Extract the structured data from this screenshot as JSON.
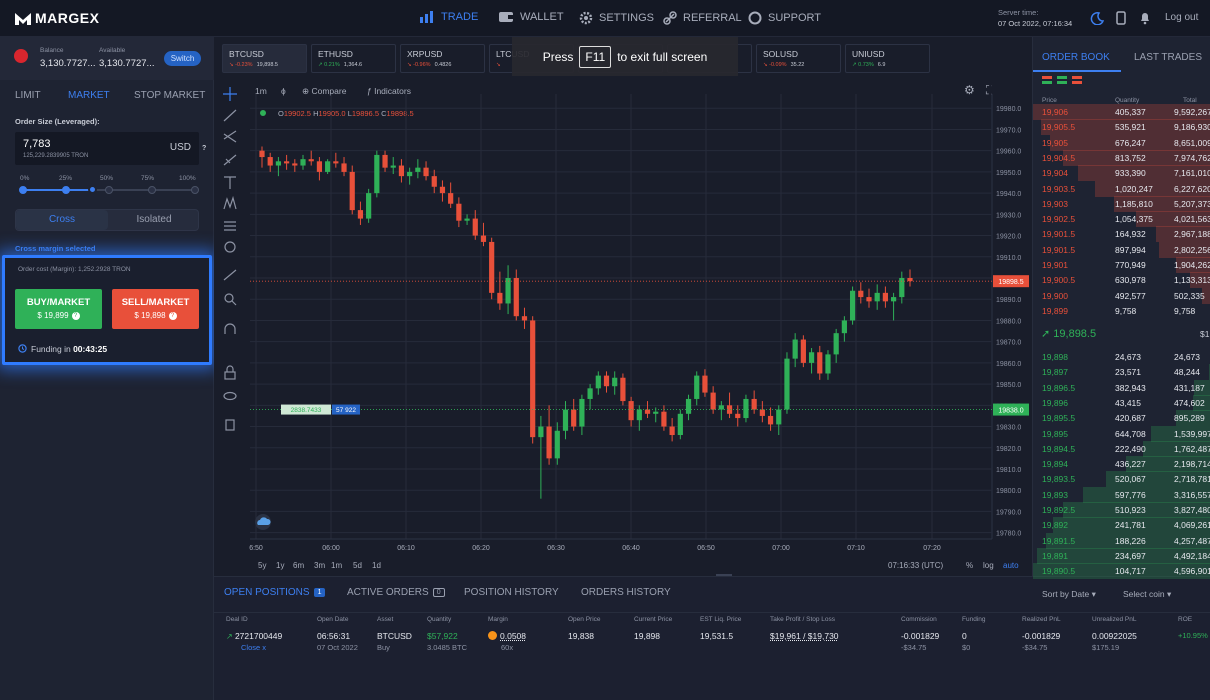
{
  "header": {
    "logo": "MARGEX",
    "nav": [
      "TRADE",
      "WALLET",
      "SETTINGS",
      "REFERRAL",
      "SUPPORT"
    ],
    "server_label": "Server time:",
    "server_time": "07 Oct 2022, 07:16:34",
    "logout": "Log out"
  },
  "balance": {
    "balance_label": "Balance",
    "balance_value": "3,130.7727...",
    "available_label": "Available",
    "available_value": "3,130.7727...",
    "switch": "Switch"
  },
  "order": {
    "tabs": [
      "LIMIT",
      "MARKET",
      "STOP MARKET"
    ],
    "size_label": "Order Size (Leveraged):",
    "size_value": "7,783",
    "size_sub": "125,229.2839905 TRON",
    "currency": "USD",
    "help": "?",
    "percents": [
      "0%",
      "25%",
      "50%",
      "75%",
      "100%"
    ],
    "slider_fraction": 0.4,
    "margin_tabs": [
      "Cross",
      "Isolated"
    ],
    "cross_selected": "Cross margin selected",
    "order_cost": "Order cost (Margin): 1,252.2928 TRON",
    "buy_label": "BUY/MARKET",
    "buy_price": "$ 19,899",
    "sell_label": "SELL/MARKET",
    "sell_price": "$ 19,898",
    "funding_label": "Funding in",
    "funding_time": "00:43:25"
  },
  "tickers": [
    {
      "name": "BTCUSD",
      "change": "-0.23%",
      "price": "19,898.5",
      "dir": "down"
    },
    {
      "name": "ETHUSD",
      "change": "0.21%",
      "price": "1,364.6",
      "dir": "up"
    },
    {
      "name": "XRPUSD",
      "change": "-0.96%",
      "price": "0.4826",
      "dir": "down"
    },
    {
      "name": "LTCUSD",
      "change": "",
      "price": "",
      "dir": "down"
    },
    {
      "name": "",
      "change": "",
      "price": "",
      "dir": "up"
    },
    {
      "name": "",
      "change": "",
      "price": "",
      "dir": "up"
    },
    {
      "name": "SOLUSD",
      "change": "-0.09%",
      "price": "35.22",
      "dir": "down"
    },
    {
      "name": "UNIUSD",
      "change": "0.73%",
      "price": "6.9",
      "dir": "up"
    }
  ],
  "fullscreen": {
    "press": "Press",
    "key": "F11",
    "text": "to exit full screen"
  },
  "chart_toolbar": {
    "interval": "1m",
    "compare": "Compare",
    "indicators": "Indicators"
  },
  "ohlc": {
    "o": "19902.5",
    "h": "19905.0",
    "l": "19896.5",
    "c": "19898.5"
  },
  "chart_data": {
    "type": "candlestick",
    "symbol": "BTCUSD",
    "interval": "1m",
    "y_ticks": [
      19980,
      19970,
      19960,
      19950,
      19940,
      19930,
      19920,
      19910,
      19900,
      19890,
      19880,
      19870,
      19860,
      19850,
      19840,
      19830,
      19820,
      19810,
      19800,
      19790,
      19780
    ],
    "y_tick_labels": [
      "19980.0",
      "19970.0",
      "19960.0",
      "19950.0",
      "19940.0",
      "19930.0",
      "19920.0",
      "19910.0",
      "19900.0",
      "19890.0",
      "19880.0",
      "19870.0",
      "19860.0",
      "19850.0",
      "19840.0",
      "19830.0",
      "19820.0",
      "19810.0",
      "19800.0",
      "19790.0",
      "19780.0"
    ],
    "x_tick_labels": [
      "6:50",
      "06:00",
      "06:10",
      "06:20",
      "06:30",
      "06:40",
      "06:50",
      "07:00",
      "07:10",
      "07:20"
    ],
    "ylim": [
      19777,
      19982
    ],
    "current_price": "19898.5",
    "position_price": "19838.0",
    "position_pnl": "2838.7433",
    "position_qty": "57 922",
    "candles": [
      [
        19960,
        19962,
        19952,
        19957
      ],
      [
        19957,
        19959,
        19950,
        19953
      ],
      [
        19953,
        19957,
        19948,
        19955
      ],
      [
        19955,
        19958,
        19951,
        19954
      ],
      [
        19954,
        19956,
        19950,
        19953
      ],
      [
        19953,
        19958,
        19951,
        19956
      ],
      [
        19956,
        19960,
        19953,
        19955
      ],
      [
        19955,
        19957,
        19946,
        19950
      ],
      [
        19950,
        19956,
        19949,
        19955
      ],
      [
        19955,
        19959,
        19952,
        19954
      ],
      [
        19954,
        19957,
        19948,
        19950
      ],
      [
        19950,
        19953,
        19930,
        19932
      ],
      [
        19932,
        19936,
        19925,
        19928
      ],
      [
        19928,
        19942,
        19926,
        19940
      ],
      [
        19940,
        19960,
        19938,
        19958
      ],
      [
        19958,
        19960,
        19950,
        19952
      ],
      [
        19952,
        19957,
        19949,
        19953
      ],
      [
        19953,
        19956,
        19945,
        19948
      ],
      [
        19948,
        19952,
        19944,
        19950
      ],
      [
        19950,
        19956,
        19947,
        19952
      ],
      [
        19952,
        19955,
        19946,
        19948
      ],
      [
        19948,
        19951,
        19940,
        19943
      ],
      [
        19943,
        19946,
        19936,
        19940
      ],
      [
        19940,
        19945,
        19933,
        19935
      ],
      [
        19935,
        19938,
        19924,
        19927
      ],
      [
        19927,
        19930,
        19925,
        19928
      ],
      [
        19928,
        19932,
        19918,
        19920
      ],
      [
        19920,
        19926,
        19915,
        19917
      ],
      [
        19917,
        19919,
        19890,
        19893
      ],
      [
        19893,
        19903,
        19885,
        19888
      ],
      [
        19888,
        19906,
        19883,
        19900
      ],
      [
        19900,
        19904,
        19880,
        19882
      ],
      [
        19882,
        19886,
        19876,
        19880
      ],
      [
        19880,
        19882,
        19822,
        19825
      ],
      [
        19825,
        19835,
        19796,
        19830
      ],
      [
        19830,
        19840,
        19812,
        19815
      ],
      [
        19815,
        19832,
        19812,
        19828
      ],
      [
        19828,
        19842,
        19824,
        19838
      ],
      [
        19838,
        19843,
        19828,
        19830
      ],
      [
        19830,
        19845,
        19826,
        19843
      ],
      [
        19843,
        19850,
        19838,
        19848
      ],
      [
        19848,
        19856,
        19845,
        19854
      ],
      [
        19854,
        19856,
        19846,
        19849
      ],
      [
        19849,
        19856,
        19845,
        19853
      ],
      [
        19853,
        19855,
        19840,
        19842
      ],
      [
        19842,
        19844,
        19830,
        19833
      ],
      [
        19833,
        19840,
        19828,
        19838
      ],
      [
        19838,
        19842,
        19834,
        19836
      ],
      [
        19836,
        19839,
        19832,
        19837
      ],
      [
        19837,
        19840,
        19828,
        19830
      ],
      [
        19830,
        19834,
        19823,
        19826
      ],
      [
        19826,
        19838,
        19824,
        19836
      ],
      [
        19836,
        19845,
        19833,
        19843
      ],
      [
        19843,
        19856,
        19840,
        19854
      ],
      [
        19854,
        19857,
        19844,
        19846
      ],
      [
        19846,
        19849,
        19836,
        19838
      ],
      [
        19838,
        19842,
        19833,
        19840
      ],
      [
        19840,
        19846,
        19834,
        19836
      ],
      [
        19836,
        19840,
        19830,
        19834
      ],
      [
        19834,
        19845,
        19832,
        19843
      ],
      [
        19843,
        19847,
        19836,
        19838
      ],
      [
        19838,
        19842,
        19832,
        19835
      ],
      [
        19835,
        19839,
        19828,
        19831
      ],
      [
        19831,
        19840,
        19826,
        19838
      ],
      [
        19838,
        19865,
        19836,
        19862
      ],
      [
        19862,
        19874,
        19858,
        19871
      ],
      [
        19871,
        19873,
        19858,
        19860
      ],
      [
        19860,
        19867,
        19855,
        19865
      ],
      [
        19865,
        19868,
        19852,
        19855
      ],
      [
        19855,
        19866,
        19852,
        19864
      ],
      [
        19864,
        19876,
        19860,
        19874
      ],
      [
        19874,
        19882,
        19870,
        19880
      ],
      [
        19880,
        19896,
        19878,
        19894
      ],
      [
        19894,
        19898,
        19888,
        19891
      ],
      [
        19891,
        19895,
        19886,
        19889
      ],
      [
        19889,
        19897,
        19885,
        19893
      ],
      [
        19893,
        19896,
        19886,
        19889
      ],
      [
        19889,
        19893,
        19880,
        19891
      ],
      [
        19891,
        19903,
        19888,
        19900
      ],
      [
        19900,
        19904,
        19896,
        19898.5
      ]
    ]
  },
  "chart_footer": {
    "ranges": [
      "5y",
      "1y",
      "6m",
      "3m",
      "1m",
      "5d",
      "1d"
    ],
    "time": "07:16:33 (UTC)",
    "pct": "%",
    "log": "log",
    "auto": "auto"
  },
  "bottom": {
    "tabs": [
      "OPEN POSITIONS",
      "ACTIVE ORDERS",
      "POSITION HISTORY",
      "ORDERS HISTORY"
    ],
    "open_count": "1",
    "active_count": "0",
    "sort": "Sort by Date",
    "select_coin": "Select coin",
    "columns": [
      "Deal ID",
      "Open Date",
      "Asset",
      "Quantity",
      "Margin",
      "Open Price",
      "Current Price",
      "EST Liq. Price",
      "Take Profit / Stop Loss",
      "Commission",
      "Funding",
      "Realized PnL",
      "Unrealized PnL",
      "ROE"
    ],
    "row": {
      "deal_id": "2721700449",
      "close": "Close",
      "open_time": "06:56:31",
      "open_date": "07 Oct 2022",
      "asset": "BTCUSD",
      "side": "Buy",
      "qty": "$57,922",
      "qty_btc": "3.0485 BTC",
      "margin": "0.0508",
      "leverage": "60x",
      "open_price": "19,838",
      "current_price": "19,898",
      "liq_price": "19,531.5",
      "tp_sl": "$19,961 / $19,730",
      "commission": "-0.001829",
      "commission_usd": "-$34.75",
      "funding": "0",
      "funding_usd": "$0",
      "realized": "-0.001829",
      "realized_usd": "-$34.75",
      "unrealized": "0.00922025",
      "unrealized_usd": "$175.19",
      "roe": "+10.95%"
    }
  },
  "orderbook": {
    "tabs": [
      "ORDER BOOK",
      "LAST TRADES"
    ],
    "headers": [
      "Price",
      "Quantity",
      "Total"
    ],
    "asks": [
      [
        "19,906",
        "405,337",
        "9,592,267"
      ],
      [
        "19,905.5",
        "535,921",
        "9,186,930"
      ],
      [
        "19,905",
        "676,247",
        "8,651,009"
      ],
      [
        "19,904.5",
        "813,752",
        "7,974,762"
      ],
      [
        "19,904",
        "933,390",
        "7,161,010"
      ],
      [
        "19,903.5",
        "1,020,247",
        "6,227,620"
      ],
      [
        "19,903",
        "1,185,810",
        "5,207,373"
      ],
      [
        "19,902.5",
        "1,054,375",
        "4,021,563"
      ],
      [
        "19,901.5",
        "164,932",
        "2,967,188"
      ],
      [
        "19,901.5",
        "897,994",
        "2,802,256"
      ],
      [
        "19,901",
        "770,949",
        "1,904,262"
      ],
      [
        "19,900.5",
        "630,978",
        "1,133,313"
      ],
      [
        "19,900",
        "492,577",
        "502,335"
      ],
      [
        "19,899",
        "9,758",
        "9,758"
      ]
    ],
    "mid_price": "19,898.5",
    "mid_right": "$1",
    "bids": [
      [
        "19,898",
        "24,673",
        "24,673"
      ],
      [
        "19,897",
        "23,571",
        "48,244"
      ],
      [
        "19,896.5",
        "382,943",
        "431,187"
      ],
      [
        "19,896",
        "43,415",
        "474,602"
      ],
      [
        "19,895.5",
        "420,687",
        "895,289"
      ],
      [
        "19,895",
        "644,708",
        "1,539,997"
      ],
      [
        "19,894.5",
        "222,490",
        "1,762,487"
      ],
      [
        "19,894",
        "436,227",
        "2,198,714"
      ],
      [
        "19,893.5",
        "520,067",
        "2,718,781"
      ],
      [
        "19,893",
        "597,776",
        "3,316,557"
      ],
      [
        "19,892.5",
        "510,923",
        "3,827,480"
      ],
      [
        "19,892",
        "241,781",
        "4,069,261"
      ],
      [
        "19,891.5",
        "188,226",
        "4,257,487"
      ],
      [
        "19,891",
        "234,697",
        "4,492,184"
      ],
      [
        "19,890.5",
        "104,717",
        "4,596,901"
      ]
    ]
  },
  "colors": {
    "accent": "#3d7ff0",
    "buy": "#2fb158",
    "sell": "#e8503a"
  }
}
